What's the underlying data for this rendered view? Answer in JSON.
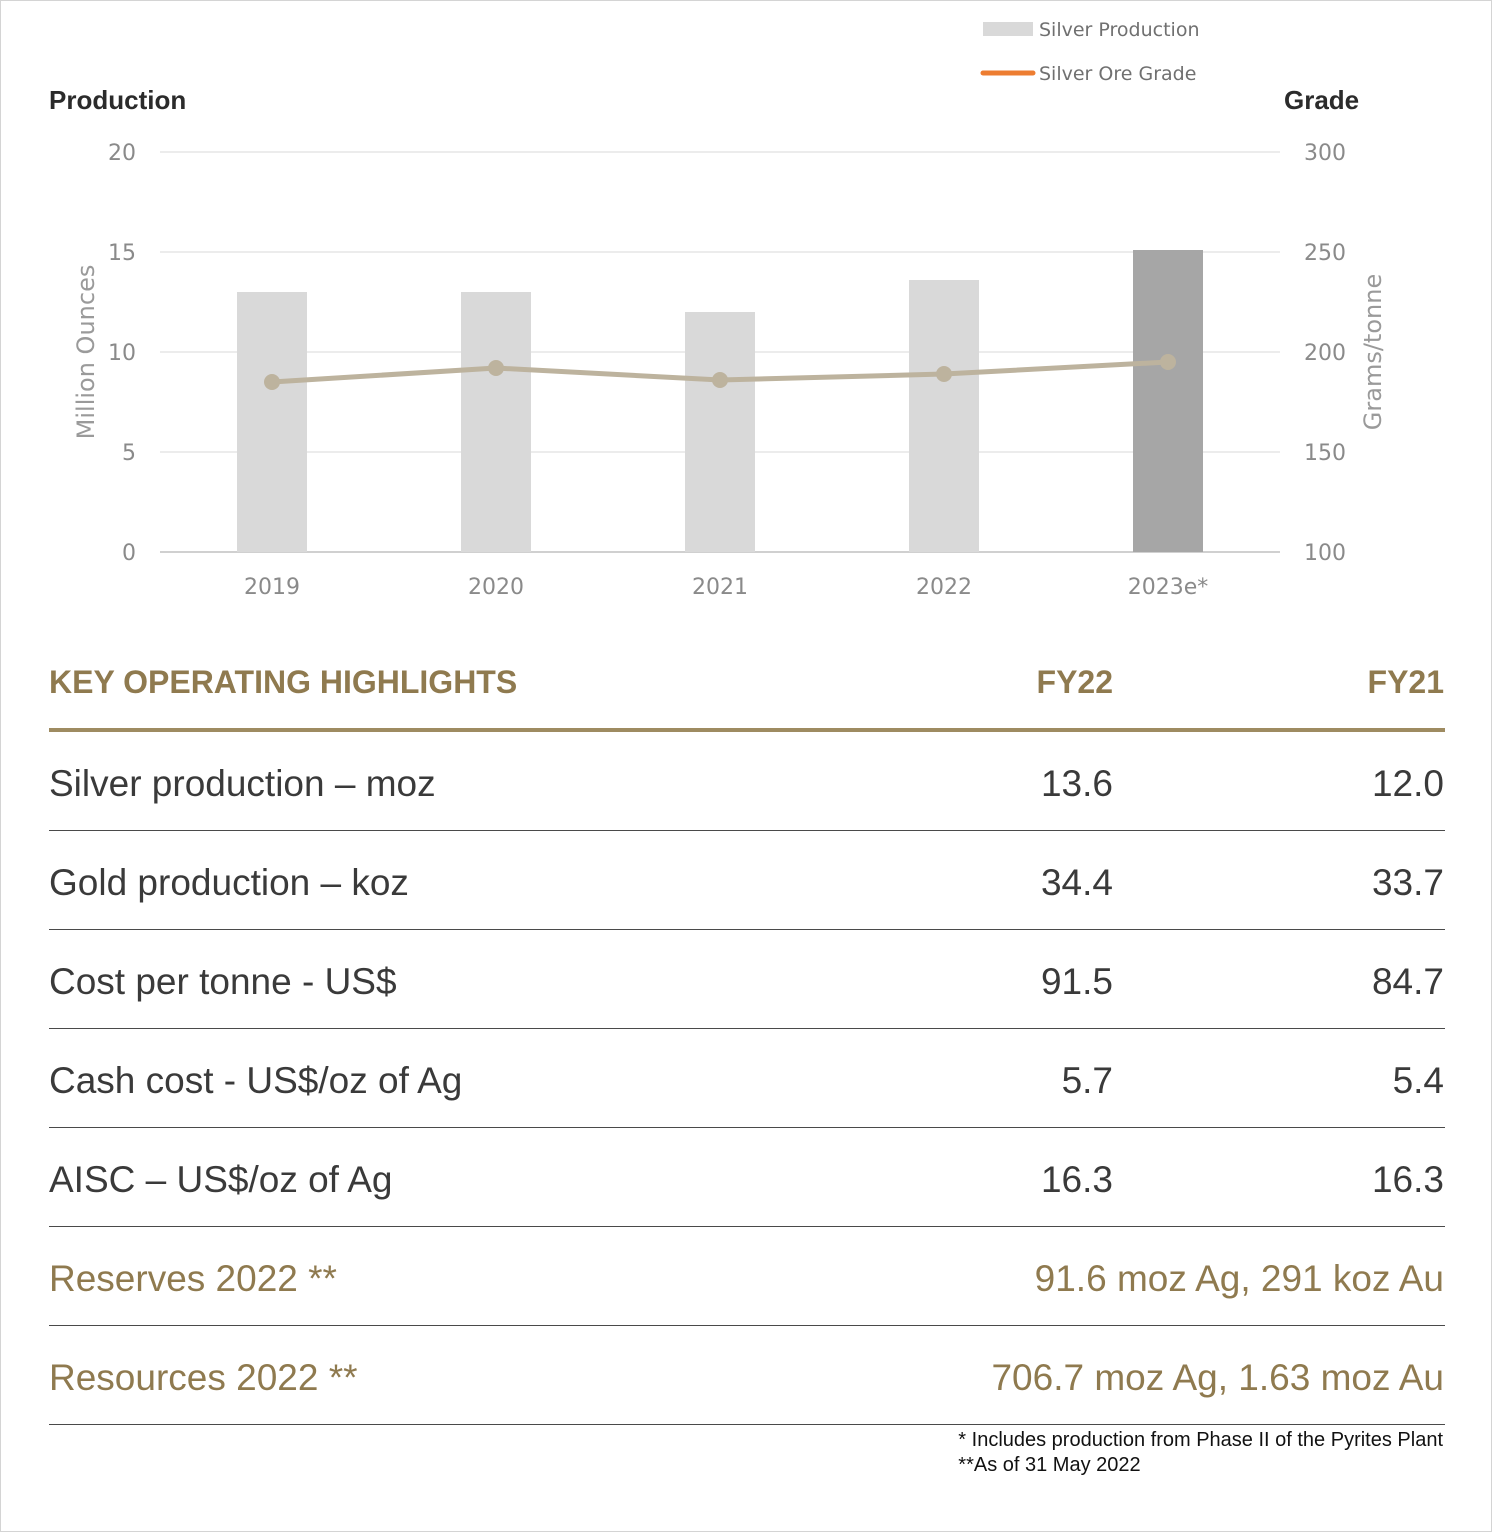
{
  "chart_data": {
    "type": "bar+line",
    "left_title": "Production",
    "right_title": "Grade",
    "ylabel": "Million Ounces",
    "y2label": "Grams/tonne",
    "ylim": [
      0,
      20
    ],
    "yticks": [
      "0",
      "5",
      "10",
      "15",
      "20"
    ],
    "y2lim": [
      100,
      300
    ],
    "y2ticks": [
      "100",
      "150",
      "200",
      "250",
      "300"
    ],
    "categories": [
      "2019",
      "2020",
      "2021",
      "2022",
      "2023e*"
    ],
    "series": [
      {
        "name": "Silver Production",
        "type": "bar",
        "axis": "left",
        "values": [
          13.0,
          13.0,
          12.0,
          13.6,
          15.1
        ],
        "color": "#d9d9d9",
        "highlight_color": "#a6a6a6",
        "highlight_index": 4
      },
      {
        "name": "Silver Ore Grade",
        "type": "line",
        "axis": "right",
        "values": [
          185,
          192,
          186,
          189,
          195
        ],
        "color": "#bdb39e"
      }
    ],
    "legend": [
      {
        "label": "Silver Production",
        "swatch": "#d9d9d9"
      },
      {
        "label": "Silver Ore Grade",
        "swatch": "#ed7d31"
      }
    ],
    "legend_position": "top-right",
    "grid": true
  },
  "table": {
    "header": {
      "title": "KEY OPERATING HIGHLIGHTS",
      "col1": "FY22",
      "col2": "FY21"
    },
    "rows": [
      {
        "label": "Silver production – moz",
        "fy22": "13.6",
        "fy21": "12.0"
      },
      {
        "label": "Gold production – koz",
        "fy22": "34.4",
        "fy21": "33.7"
      },
      {
        "label": "Cost per tonne - US$",
        "fy22": "91.5",
        "fy21": "84.7"
      },
      {
        "label": "Cash cost - US$/oz of Ag",
        "fy22": "5.7",
        "fy21": "5.4"
      },
      {
        "label": "AISC – US$/oz of Ag",
        "fy22": "16.3",
        "fy21": "16.3"
      }
    ],
    "highlight_rows": [
      {
        "label": "Reserves 2022 **",
        "value": "91.6 moz Ag, 291 koz Au"
      },
      {
        "label": "Resources 2022 **",
        "value": "706.7 moz Ag, 1.63 moz Au"
      }
    ]
  },
  "footnotes": {
    "line1": "* Includes production from Phase II of the Pyrites Plant",
    "line2": "**As of 31 May 2022"
  },
  "colors": {
    "accent": "#8f7a4f",
    "rule": "#9e8b61"
  }
}
